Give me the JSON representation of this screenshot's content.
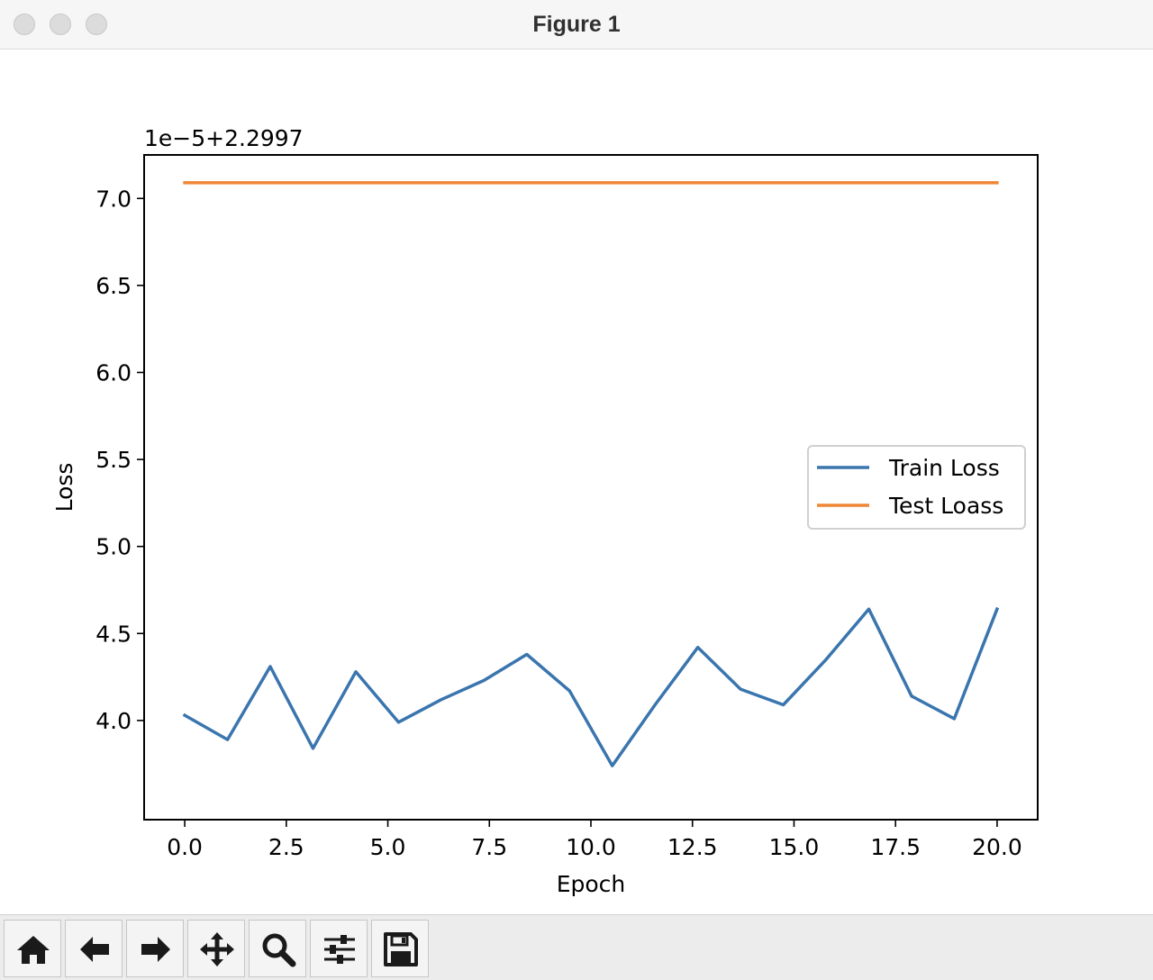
{
  "window": {
    "title": "Figure 1"
  },
  "toolbar": {
    "buttons": [
      {
        "name": "home-button",
        "icon": "home-icon"
      },
      {
        "name": "back-button",
        "icon": "arrow-left-icon"
      },
      {
        "name": "forward-button",
        "icon": "arrow-right-icon"
      },
      {
        "name": "pan-button",
        "icon": "move-icon"
      },
      {
        "name": "zoom-button",
        "icon": "magnifier-icon"
      },
      {
        "name": "configure-subplots-button",
        "icon": "sliders-icon"
      },
      {
        "name": "save-button",
        "icon": "floppy-disk-icon"
      }
    ]
  },
  "chart_data": {
    "type": "line",
    "title": "",
    "xlabel": "Epoch",
    "ylabel": "Loss",
    "offset_text": "1e−5+2.2997",
    "xlim": [
      -1.0,
      21.0
    ],
    "ylim": [
      3.43,
      7.25
    ],
    "xticks": [
      0.0,
      2.5,
      5.0,
      7.5,
      10.0,
      12.5,
      15.0,
      17.5,
      20.0
    ],
    "xtick_labels": [
      "0.0",
      "2.5",
      "5.0",
      "7.5",
      "10.0",
      "12.5",
      "15.0",
      "17.5",
      "20.0"
    ],
    "yticks": [
      4.0,
      4.5,
      5.0,
      5.5,
      6.0,
      6.5,
      7.0
    ],
    "ytick_labels": [
      "4.0",
      "4.5",
      "5.0",
      "5.5",
      "6.0",
      "6.5",
      "7.0"
    ],
    "grid": false,
    "legend": "center-right",
    "series": [
      {
        "name": "Train Loss",
        "color": "#3a75ae",
        "x": [
          0,
          1.053,
          2.105,
          3.158,
          4.211,
          5.263,
          6.316,
          7.368,
          8.421,
          9.474,
          10.526,
          11.579,
          12.632,
          13.684,
          14.737,
          15.789,
          16.842,
          17.895,
          18.947,
          20.0
        ],
        "y": [
          4.03,
          3.89,
          4.31,
          3.84,
          4.28,
          3.99,
          4.12,
          4.23,
          4.38,
          4.17,
          3.74,
          4.09,
          4.42,
          4.18,
          4.09,
          4.35,
          4.64,
          4.14,
          4.01,
          4.64
        ]
      },
      {
        "name": "Test Loass",
        "color": "#ef8636",
        "x": [
          0,
          1.053,
          2.105,
          3.158,
          4.211,
          5.263,
          6.316,
          7.368,
          8.421,
          9.474,
          10.526,
          11.579,
          12.632,
          13.684,
          14.737,
          15.789,
          16.842,
          17.895,
          18.947,
          20.0
        ],
        "y": [
          7.09,
          7.09,
          7.09,
          7.09,
          7.09,
          7.09,
          7.09,
          7.09,
          7.09,
          7.09,
          7.09,
          7.09,
          7.09,
          7.09,
          7.09,
          7.09,
          7.09,
          7.09,
          7.09,
          7.09
        ]
      }
    ]
  }
}
